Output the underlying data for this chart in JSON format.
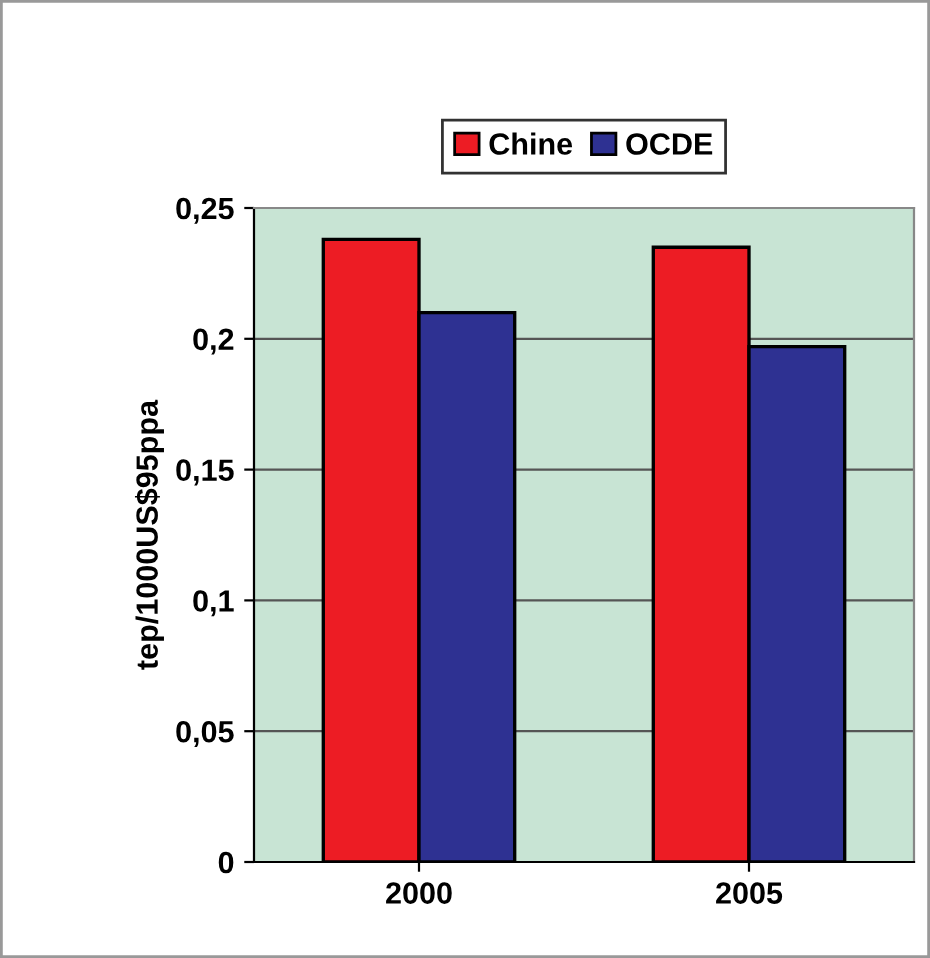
{
  "chart_data": {
    "type": "bar",
    "ylabel": "tep/1000US$95ppa",
    "categories": [
      "2000",
      "2005"
    ],
    "series": [
      {
        "name": "Chine",
        "color": "#ed1c24",
        "values": [
          0.238,
          0.235
        ]
      },
      {
        "name": "OCDE",
        "color": "#2e3192",
        "values": [
          0.21,
          0.197
        ]
      }
    ],
    "ylim": [
      0,
      0.25
    ],
    "yticks": [
      {
        "value": 0,
        "label": "0"
      },
      {
        "value": 0.05,
        "label": "0,05"
      },
      {
        "value": 0.1,
        "label": "0,1"
      },
      {
        "value": 0.15,
        "label": "0,15"
      },
      {
        "value": 0.2,
        "label": "0,2"
      },
      {
        "value": 0.25,
        "label": "0,25"
      }
    ],
    "grid": "y",
    "legend": "top"
  }
}
